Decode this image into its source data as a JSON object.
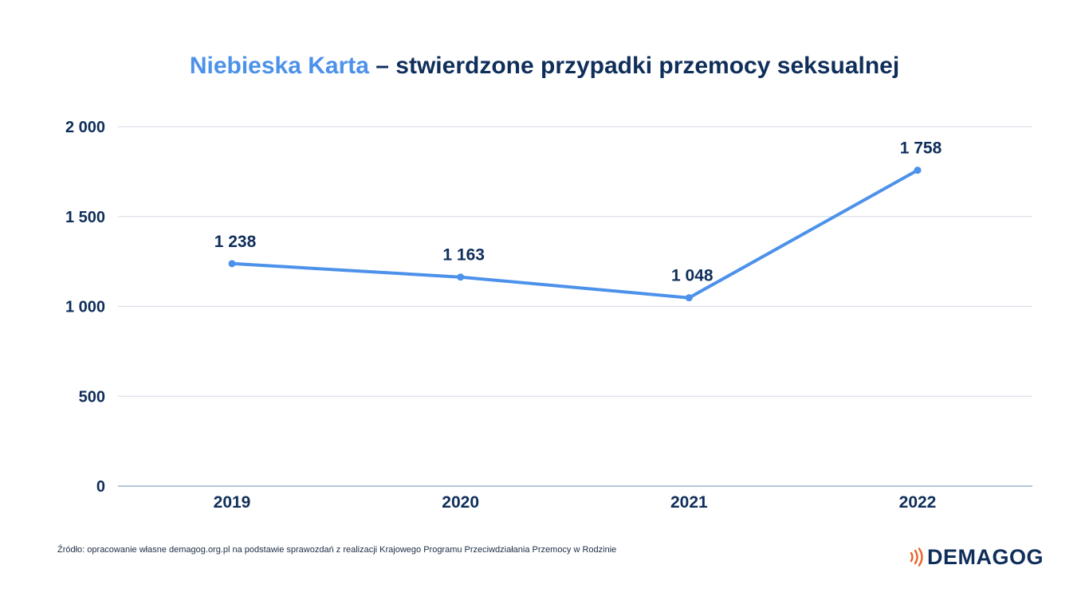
{
  "title": {
    "highlight": "Niebieska Karta",
    "rest": " – stwierdzone przypadki przemocy seksualnej"
  },
  "chart_data": {
    "type": "line",
    "x": [
      "2019",
      "2020",
      "2021",
      "2022"
    ],
    "values": [
      1238,
      1163,
      1048,
      1758
    ],
    "value_labels": [
      "1 238",
      "1 163",
      "1 048",
      "1 758"
    ],
    "y_ticks": [
      0,
      500,
      1000,
      1500,
      2000
    ],
    "y_tick_labels": [
      "0",
      "500",
      "1 000",
      "1 500",
      "2 000"
    ],
    "ylim": [
      0,
      2000
    ],
    "grid": true,
    "legend": "none",
    "line_color": "#4c91ea",
    "grid_color": "#d3d8e6",
    "text_color": "#0f2e5a"
  },
  "footer": {
    "source": "Źródło: opracowanie własne demagog.org.pl na podstawie sprawozdań z realizacji Krajowego Programu Przeciwdziałania Przemocy w Rodzinie",
    "logo": "DEMAGOG",
    "logo_accent": "#e8622a"
  }
}
